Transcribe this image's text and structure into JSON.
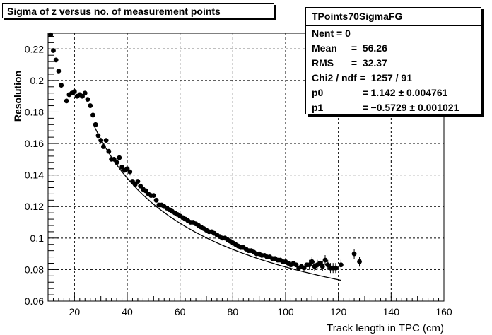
{
  "title": "Sigma of z versus no. of measurement points",
  "stats": {
    "name": "TPoints70SigmaFG",
    "rows": [
      {
        "key": "Nent = 0",
        "val": ""
      },
      {
        "key": "Mean",
        "val": " =  56.26"
      },
      {
        "key": "RMS",
        "val": " =  32.37"
      },
      {
        "key": "Chi2 / ndf =  1257 / 91",
        "val": ""
      },
      {
        "key": "p0",
        "val": "     = 1.142 ± 0.004761"
      },
      {
        "key": "p1",
        "val": "     = −0.5729 ± 0.001021"
      }
    ]
  },
  "chart_data": {
    "type": "scatter",
    "xlabel": "Track length in TPC (cm)",
    "ylabel": "Resolution",
    "xlim": [
      10,
      160
    ],
    "ylim": [
      0.06,
      0.23
    ],
    "xticks": [
      20,
      40,
      60,
      80,
      100,
      120,
      140,
      160
    ],
    "yticks": [
      0.06,
      0.08,
      0.1,
      0.12,
      0.14,
      0.16,
      0.18,
      0.2,
      0.22
    ],
    "grid": true,
    "points": [
      [
        11,
        0.229
      ],
      [
        12,
        0.219
      ],
      [
        13,
        0.213
      ],
      [
        14,
        0.206
      ],
      [
        15,
        0.197
      ],
      [
        17,
        0.187
      ],
      [
        18,
        0.191
      ],
      [
        19,
        0.192
      ],
      [
        20,
        0.193
      ],
      [
        21,
        0.19
      ],
      [
        22,
        0.191
      ],
      [
        23,
        0.19
      ],
      [
        24,
        0.192
      ],
      [
        25,
        0.188
      ],
      [
        26,
        0.184
      ],
      [
        27,
        0.178
      ],
      [
        28,
        0.172
      ],
      [
        29,
        0.165
      ],
      [
        30,
        0.162
      ],
      [
        31,
        0.158
      ],
      [
        32,
        0.162
      ],
      [
        33,
        0.155
      ],
      [
        34,
        0.15
      ],
      [
        35,
        0.15
      ],
      [
        36,
        0.148
      ],
      [
        37,
        0.151
      ],
      [
        38,
        0.145
      ],
      [
        39,
        0.143
      ],
      [
        40,
        0.144
      ],
      [
        41,
        0.142
      ],
      [
        42,
        0.136
      ],
      [
        43,
        0.134
      ],
      [
        44,
        0.136
      ],
      [
        45,
        0.133
      ],
      [
        46,
        0.131
      ],
      [
        47,
        0.13
      ],
      [
        48,
        0.128
      ],
      [
        49,
        0.127
      ],
      [
        50,
        0.127
      ],
      [
        51,
        0.124
      ],
      [
        52,
        0.121
      ],
      [
        53,
        0.121
      ],
      [
        54,
        0.12
      ],
      [
        55,
        0.119
      ],
      [
        56,
        0.118
      ],
      [
        57,
        0.117
      ],
      [
        58,
        0.116
      ],
      [
        59,
        0.115
      ],
      [
        60,
        0.114
      ],
      [
        61,
        0.113
      ],
      [
        62,
        0.112
      ],
      [
        63,
        0.111
      ],
      [
        64,
        0.11
      ],
      [
        65,
        0.11
      ],
      [
        66,
        0.109
      ],
      [
        67,
        0.108
      ],
      [
        68,
        0.107
      ],
      [
        69,
        0.106
      ],
      [
        70,
        0.105
      ],
      [
        71,
        0.104
      ],
      [
        72,
        0.104
      ],
      [
        73,
        0.103
      ],
      [
        74,
        0.102
      ],
      [
        75,
        0.101
      ],
      [
        76,
        0.1
      ],
      [
        77,
        0.1
      ],
      [
        78,
        0.099
      ],
      [
        79,
        0.098
      ],
      [
        80,
        0.097
      ],
      [
        81,
        0.096
      ],
      [
        82,
        0.095
      ],
      [
        83,
        0.094
      ],
      [
        84,
        0.094
      ],
      [
        85,
        0.093
      ],
      [
        86,
        0.092
      ],
      [
        87,
        0.092
      ],
      [
        88,
        0.091
      ],
      [
        89,
        0.09
      ],
      [
        90,
        0.09
      ],
      [
        91,
        0.089
      ],
      [
        92,
        0.089
      ],
      [
        93,
        0.088
      ],
      [
        94,
        0.088
      ],
      [
        95,
        0.087
      ],
      [
        96,
        0.087
      ],
      [
        97,
        0.086
      ],
      [
        98,
        0.086
      ],
      [
        99,
        0.085
      ],
      [
        100,
        0.085
      ],
      [
        101,
        0.084
      ],
      [
        102,
        0.083
      ],
      [
        103,
        0.084
      ],
      [
        104,
        0.083
      ],
      [
        105,
        0.081
      ],
      [
        106,
        0.082
      ],
      [
        107,
        0.081
      ],
      [
        108,
        0.083
      ],
      [
        109,
        0.083
      ],
      [
        110,
        0.085
      ],
      [
        111,
        0.082
      ],
      [
        112,
        0.083
      ],
      [
        113,
        0.084
      ],
      [
        114,
        0.082
      ],
      [
        115,
        0.086
      ],
      [
        116,
        0.083
      ],
      [
        117,
        0.081
      ],
      [
        118,
        0.081
      ],
      [
        119,
        0.081
      ],
      [
        121,
        0.083
      ],
      [
        126,
        0.09
      ],
      [
        128,
        0.085
      ]
    ],
    "fit": {
      "p0": 1.142,
      "p1": -0.5729,
      "x_from": 27,
      "x_to": 121
    }
  }
}
